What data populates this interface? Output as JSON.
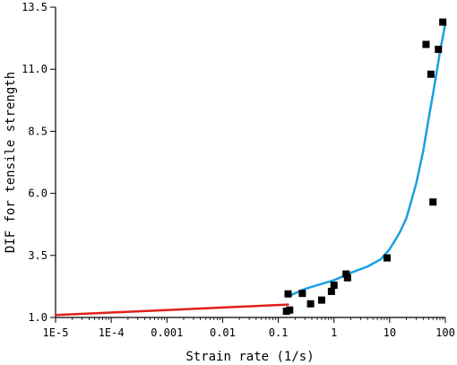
{
  "chart_data": {
    "type": "scatter",
    "title": "",
    "xlabel": "Strain rate (1/s)",
    "ylabel": "DIF for tensile strength",
    "xscale": "log",
    "xlim": [
      1e-05,
      100
    ],
    "ylim": [
      1.0,
      13.5
    ],
    "xticks": [
      {
        "value": 1e-05,
        "label": "1E-5"
      },
      {
        "value": 0.0001,
        "label": "1E-4"
      },
      {
        "value": 0.001,
        "label": "0.001"
      },
      {
        "value": 0.01,
        "label": "0.01"
      },
      {
        "value": 0.1,
        "label": "0.1"
      },
      {
        "value": 1,
        "label": "1"
      },
      {
        "value": 10,
        "label": "10"
      },
      {
        "value": 100,
        "label": "100"
      }
    ],
    "yticks": [
      {
        "value": 1.0,
        "label": "1.0"
      },
      {
        "value": 3.5,
        "label": "3.5"
      },
      {
        "value": 6.0,
        "label": "6.0"
      },
      {
        "value": 8.5,
        "label": "8.5"
      },
      {
        "value": 11.0,
        "label": "11.0"
      },
      {
        "value": 13.5,
        "label": "13.5"
      }
    ],
    "grid": false,
    "legend": "none",
    "series": [
      {
        "kind": "markers",
        "color": "#000000",
        "marker": "square",
        "points": [
          [
            0.14,
            1.25
          ],
          [
            0.16,
            1.3
          ],
          [
            0.15,
            1.95
          ],
          [
            0.27,
            1.97
          ],
          [
            0.38,
            1.55
          ],
          [
            0.6,
            1.7
          ],
          [
            0.9,
            2.05
          ],
          [
            1.0,
            2.3
          ],
          [
            1.65,
            2.75
          ],
          [
            1.75,
            2.6
          ],
          [
            9.0,
            3.4
          ],
          [
            45,
            12.0
          ],
          [
            55,
            10.8
          ],
          [
            60,
            5.65
          ],
          [
            75,
            11.8
          ],
          [
            90,
            12.9
          ]
        ]
      },
      {
        "kind": "line",
        "color": "#e0201a",
        "points": [
          [
            1e-05,
            1.1
          ],
          [
            0.0001,
            1.2
          ],
          [
            0.001,
            1.3
          ],
          [
            0.01,
            1.4
          ],
          [
            0.1,
            1.5
          ],
          [
            0.15,
            1.52
          ]
        ]
      },
      {
        "kind": "line",
        "color": "#1a9fe0",
        "points": [
          [
            0.15,
            1.85
          ],
          [
            0.3,
            2.15
          ],
          [
            1,
            2.5
          ],
          [
            2,
            2.8
          ],
          [
            4,
            3.05
          ],
          [
            7,
            3.35
          ],
          [
            10,
            3.75
          ],
          [
            15,
            4.4
          ],
          [
            20,
            5.0
          ],
          [
            30,
            6.4
          ],
          [
            40,
            7.7
          ],
          [
            50,
            9.0
          ],
          [
            60,
            10.0
          ],
          [
            70,
            10.9
          ],
          [
            80,
            11.7
          ],
          [
            90,
            12.3
          ],
          [
            100,
            12.85
          ]
        ]
      }
    ]
  }
}
